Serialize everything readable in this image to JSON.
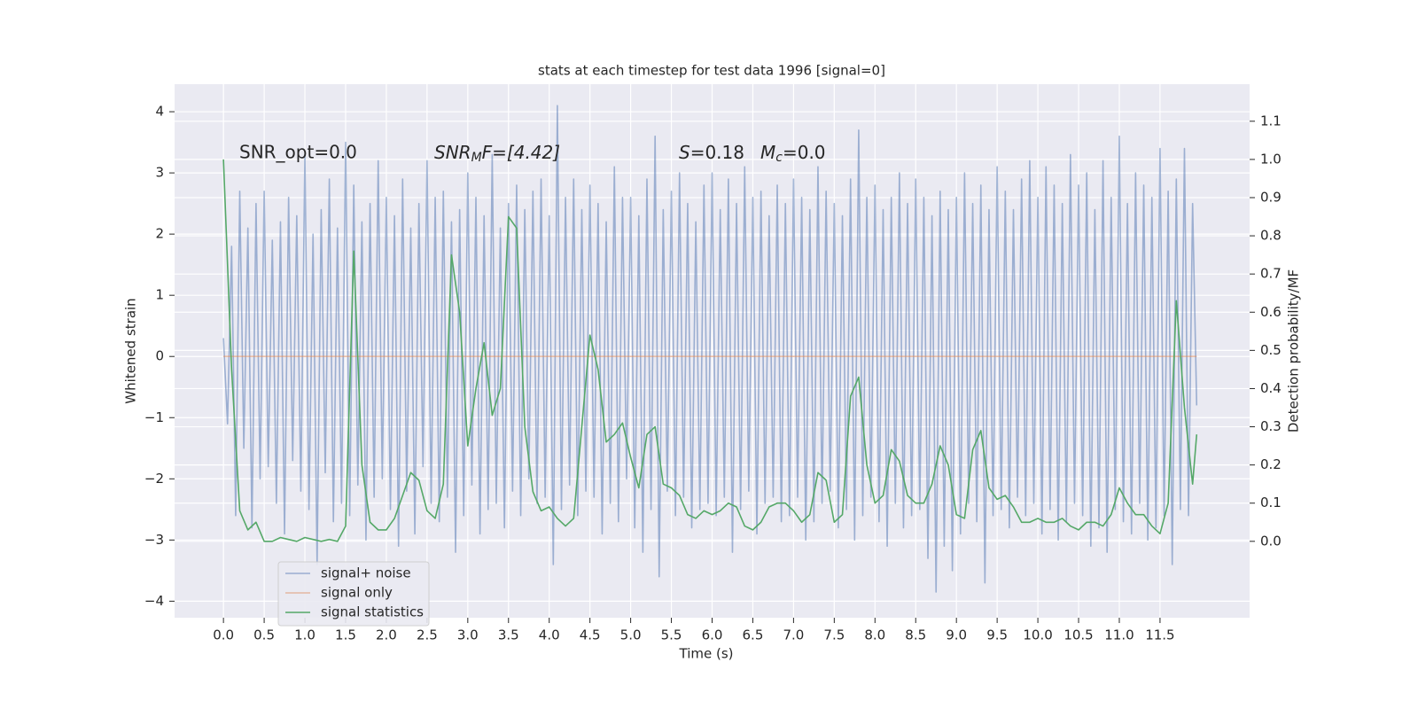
{
  "chart_data": {
    "type": "line",
    "title": "stats at each timestep for test data 1996 [signal=0]",
    "xlabel": "Time (s)",
    "ylabel": "Whitened strain",
    "y2label": "Detection probability/MF",
    "annotations": [
      [
        "SNR_opt=0.0"
      ],
      [
        "SNR",
        "M",
        "F=[4.42]"
      ],
      [
        "S",
        "=0.18",
        "M",
        "c",
        "=0.0"
      ]
    ],
    "grid": true,
    "legend": "lower left",
    "xlim": [
      -0.6,
      12.6
    ],
    "ylim": [
      -4.27,
      4.45
    ],
    "y2lim": [
      -0.2,
      1.197
    ],
    "xticks": [
      {
        "value": 0,
        "label": "0.0"
      },
      {
        "value": 0.5,
        "label": "0.5"
      },
      {
        "value": 1,
        "label": "1.0"
      },
      {
        "value": 1.5,
        "label": "1.5"
      },
      {
        "value": 2,
        "label": "2.0"
      },
      {
        "value": 2.5,
        "label": "2.5"
      },
      {
        "value": 3,
        "label": "3.0"
      },
      {
        "value": 3.5,
        "label": "3.5"
      },
      {
        "value": 4,
        "label": "4.0"
      },
      {
        "value": 4.5,
        "label": "4.5"
      },
      {
        "value": 5,
        "label": "5.0"
      },
      {
        "value": 5.5,
        "label": "5.5"
      },
      {
        "value": 6,
        "label": "6.0"
      },
      {
        "value": 6.5,
        "label": "6.5"
      },
      {
        "value": 7,
        "label": "7.0"
      },
      {
        "value": 7.5,
        "label": "7.5"
      },
      {
        "value": 8,
        "label": "8.0"
      },
      {
        "value": 8.5,
        "label": "8.5"
      },
      {
        "value": 9,
        "label": "9.0"
      },
      {
        "value": 9.5,
        "label": "9.5"
      },
      {
        "value": 10,
        "label": "10.0"
      },
      {
        "value": 10.5,
        "label": "10.5"
      },
      {
        "value": 11,
        "label": "11.0"
      },
      {
        "value": 11.5,
        "label": "11.5"
      }
    ],
    "yticks": [
      {
        "value": -4,
        "label": "−4"
      },
      {
        "value": -3,
        "label": "−3"
      },
      {
        "value": -2,
        "label": "−2"
      },
      {
        "value": -1,
        "label": "−1"
      },
      0,
      1,
      2,
      3,
      4
    ],
    "y2ticks": [
      {
        "value": 0,
        "label": "0.0"
      },
      0.1,
      0.2,
      0.3,
      0.4,
      0.5,
      0.6,
      0.7,
      0.8,
      0.9,
      {
        "value": 1,
        "label": "1.0"
      },
      1.1
    ],
    "series": [
      {
        "name": "signal+ noise",
        "color": "#4c72b0",
        "opacity": 0.5,
        "x": [
          0,
          0.05,
          0.1,
          0.15,
          0.2,
          0.25,
          0.3,
          0.35,
          0.4,
          0.45,
          0.5,
          0.55,
          0.6,
          0.65,
          0.7,
          0.75,
          0.8,
          0.85,
          0.9,
          0.95,
          1,
          1.05,
          1.1,
          1.15,
          1.2,
          1.25,
          1.3,
          1.35,
          1.4,
          1.45,
          1.5,
          1.55,
          1.6,
          1.65,
          1.7,
          1.75,
          1.8,
          1.85,
          1.9,
          1.95,
          2,
          2.05,
          2.1,
          2.15,
          2.2,
          2.25,
          2.3,
          2.35,
          2.4,
          2.45,
          2.5,
          2.55,
          2.6,
          2.65,
          2.7,
          2.75,
          2.8,
          2.85,
          2.9,
          2.95,
          3,
          3.05,
          3.1,
          3.15,
          3.2,
          3.25,
          3.3,
          3.35,
          3.4,
          3.45,
          3.5,
          3.55,
          3.6,
          3.65,
          3.7,
          3.75,
          3.8,
          3.85,
          3.9,
          3.95,
          4,
          4.05,
          4.1,
          4.15,
          4.2,
          4.25,
          4.3,
          4.35,
          4.4,
          4.45,
          4.5,
          4.55,
          4.6,
          4.65,
          4.7,
          4.75,
          4.8,
          4.85,
          4.9,
          4.95,
          5,
          5.05,
          5.1,
          5.15,
          5.2,
          5.25,
          5.3,
          5.35,
          5.4,
          5.45,
          5.5,
          5.55,
          5.6,
          5.65,
          5.7,
          5.75,
          5.8,
          5.85,
          5.9,
          5.95,
          6,
          6.05,
          6.1,
          6.15,
          6.2,
          6.25,
          6.3,
          6.35,
          6.4,
          6.45,
          6.5,
          6.55,
          6.6,
          6.65,
          6.7,
          6.75,
          6.8,
          6.85,
          6.9,
          6.95,
          7,
          7.05,
          7.1,
          7.15,
          7.2,
          7.25,
          7.3,
          7.35,
          7.4,
          7.45,
          7.5,
          7.55,
          7.6,
          7.65,
          7.7,
          7.75,
          7.8,
          7.85,
          7.9,
          7.95,
          8,
          8.05,
          8.1,
          8.15,
          8.2,
          8.25,
          8.3,
          8.35,
          8.4,
          8.45,
          8.5,
          8.55,
          8.6,
          8.65,
          8.7,
          8.75,
          8.8,
          8.85,
          8.9,
          8.95,
          9,
          9.05,
          9.1,
          9.15,
          9.2,
          9.25,
          9.3,
          9.35,
          9.4,
          9.45,
          9.5,
          9.55,
          9.6,
          9.65,
          9.7,
          9.75,
          9.8,
          9.85,
          9.9,
          9.95,
          10,
          10.05,
          10.1,
          10.15,
          10.2,
          10.25,
          10.3,
          10.35,
          10.4,
          10.45,
          10.5,
          10.55,
          10.6,
          10.65,
          10.7,
          10.75,
          10.8,
          10.85,
          10.9,
          10.95,
          11,
          11.05,
          11.1,
          11.15,
          11.2,
          11.25,
          11.3,
          11.35,
          11.4,
          11.45,
          11.5,
          11.55,
          11.6,
          11.65,
          11.7,
          11.75,
          11.8,
          11.85,
          11.9,
          11.95
        ],
        "values": [
          0.3,
          -1.1,
          1.8,
          -2.6,
          2.7,
          -1.5,
          2.1,
          -2.8,
          2.5,
          -2.0,
          2.7,
          -1.8,
          1.9,
          -2.4,
          2.2,
          -2.9,
          2.6,
          -1.7,
          2.3,
          -2.2,
          3.3,
          -2.5,
          2.0,
          -3.4,
          2.4,
          -1.9,
          2.9,
          -2.7,
          2.1,
          -2.4,
          3.5,
          -2.6,
          2.8,
          -2.1,
          2.2,
          -3.0,
          2.5,
          -2.3,
          3.2,
          -2.0,
          2.6,
          -2.5,
          2.3,
          -3.1,
          2.9,
          -2.2,
          2.1,
          -2.9,
          2.5,
          -1.8,
          3.2,
          -2.4,
          2.6,
          -2.7,
          2.7,
          -2.3,
          2.2,
          -3.2,
          2.4,
          -2.6,
          3.0,
          -2.1,
          2.6,
          -2.9,
          2.3,
          -2.5,
          3.3,
          -2.4,
          2.1,
          -2.8,
          2.5,
          -2.2,
          2.8,
          -2.6,
          2.4,
          -2.0,
          2.7,
          -2.4,
          2.9,
          -2.3,
          2.3,
          -3.4,
          4.1,
          -2.5,
          2.6,
          -2.1,
          2.9,
          -2.6,
          2.4,
          -2.2,
          2.8,
          -2.3,
          2.5,
          -2.9,
          2.2,
          -2.4,
          3.1,
          -2.7,
          2.6,
          -2.0,
          2.6,
          -2.8,
          2.3,
          -3.2,
          2.9,
          -2.5,
          3.6,
          -3.6,
          2.4,
          -2.2,
          2.7,
          -2.6,
          3.0,
          -2.3,
          2.5,
          -2.8,
          2.2,
          -2.5,
          2.8,
          -2.4,
          3.0,
          -2.6,
          2.4,
          -2.3,
          2.9,
          -3.2,
          2.5,
          -2.5,
          3.1,
          -2.2,
          2.6,
          -2.9,
          2.7,
          -2.4,
          2.3,
          -2.3,
          2.8,
          -2.7,
          2.5,
          -2.6,
          2.9,
          -2.3,
          2.6,
          -3.0,
          2.4,
          -2.7,
          3.1,
          -2.4,
          2.7,
          -2.2,
          2.5,
          -2.8,
          2.3,
          -2.5,
          2.9,
          -3.0,
          3.7,
          -2.6,
          2.6,
          -2.3,
          2.8,
          -2.7,
          2.4,
          -3.1,
          2.6,
          -2.4,
          3.0,
          -2.8,
          2.5,
          -2.6,
          2.9,
          -2.5,
          2.6,
          -3.3,
          2.3,
          -3.85,
          2.7,
          -3.1,
          2.4,
          -3.5,
          2.6,
          -2.9,
          3.0,
          -2.4,
          2.5,
          -2.7,
          2.8,
          -3.7,
          2.4,
          -2.6,
          3.1,
          -2.5,
          2.7,
          -2.8,
          2.4,
          -2.3,
          2.9,
          -2.6,
          3.2,
          -2.4,
          2.6,
          -2.9,
          3.1,
          -2.5,
          2.8,
          -3.0,
          2.5,
          -2.7,
          3.3,
          -2.4,
          2.8,
          -2.6,
          3.0,
          -3.1,
          2.4,
          -2.8,
          3.2,
          -3.2,
          2.6,
          -2.5,
          3.6,
          -2.7,
          2.5,
          -2.9,
          3.0,
          -2.4,
          2.8,
          -3.0,
          2.6,
          -2.8,
          3.4,
          -2.6,
          2.7,
          -3.4,
          2.9,
          -2.5,
          3.4,
          -2.6,
          2.5,
          -0.8
        ]
      },
      {
        "name": "signal only",
        "color": "#dd8452",
        "opacity": 0.5,
        "x": [
          0,
          11.95
        ],
        "values": [
          0,
          0
        ]
      },
      {
        "name": "signal statistics",
        "color": "#55a868",
        "opacity": 1,
        "axis": "y2",
        "x": [
          0,
          0.1,
          0.2,
          0.3,
          0.4,
          0.5,
          0.6,
          0.7,
          0.8,
          0.9,
          1,
          1.1,
          1.2,
          1.3,
          1.4,
          1.5,
          1.6,
          1.7,
          1.8,
          1.9,
          2,
          2.1,
          2.2,
          2.3,
          2.4,
          2.5,
          2.6,
          2.7,
          2.8,
          2.9,
          3,
          3.1,
          3.2,
          3.3,
          3.4,
          3.5,
          3.6,
          3.7,
          3.8,
          3.9,
          4,
          4.1,
          4.2,
          4.3,
          4.4,
          4.5,
          4.6,
          4.7,
          4.8,
          4.9,
          5,
          5.1,
          5.2,
          5.3,
          5.4,
          5.5,
          5.6,
          5.7,
          5.8,
          5.9,
          6,
          6.1,
          6.2,
          6.3,
          6.4,
          6.5,
          6.6,
          6.7,
          6.8,
          6.9,
          7,
          7.1,
          7.2,
          7.3,
          7.4,
          7.5,
          7.6,
          7.7,
          7.8,
          7.9,
          8,
          8.1,
          8.2,
          8.3,
          8.4,
          8.5,
          8.6,
          8.7,
          8.8,
          8.9,
          9,
          9.1,
          9.2,
          9.3,
          9.4,
          9.5,
          9.6,
          9.7,
          9.8,
          9.9,
          10,
          10.1,
          10.2,
          10.3,
          10.4,
          10.5,
          10.6,
          10.7,
          10.8,
          10.9,
          11,
          11.1,
          11.2,
          11.3,
          11.4,
          11.5,
          11.6,
          11.7,
          11.8,
          11.9,
          11.95
        ],
        "values": [
          1.0,
          0.45,
          0.08,
          0.03,
          0.05,
          0.0,
          0.0,
          0.01,
          0.005,
          0.0,
          0.01,
          0.005,
          0.0,
          0.005,
          0.0,
          0.04,
          0.76,
          0.2,
          0.05,
          0.03,
          0.03,
          0.06,
          0.12,
          0.18,
          0.16,
          0.08,
          0.06,
          0.15,
          0.75,
          0.6,
          0.25,
          0.4,
          0.52,
          0.33,
          0.4,
          0.85,
          0.82,
          0.3,
          0.13,
          0.08,
          0.09,
          0.06,
          0.04,
          0.06,
          0.3,
          0.54,
          0.45,
          0.26,
          0.28,
          0.31,
          0.22,
          0.14,
          0.28,
          0.3,
          0.15,
          0.14,
          0.12,
          0.07,
          0.06,
          0.08,
          0.07,
          0.08,
          0.1,
          0.09,
          0.04,
          0.03,
          0.05,
          0.09,
          0.1,
          0.1,
          0.08,
          0.05,
          0.07,
          0.18,
          0.16,
          0.05,
          0.07,
          0.38,
          0.43,
          0.2,
          0.1,
          0.12,
          0.24,
          0.21,
          0.12,
          0.1,
          0.1,
          0.15,
          0.25,
          0.2,
          0.07,
          0.06,
          0.24,
          0.29,
          0.14,
          0.11,
          0.12,
          0.09,
          0.05,
          0.05,
          0.06,
          0.05,
          0.05,
          0.06,
          0.04,
          0.03,
          0.05,
          0.05,
          0.04,
          0.07,
          0.14,
          0.1,
          0.07,
          0.07,
          0.04,
          0.02,
          0.1,
          0.63,
          0.35,
          0.15,
          0.28
        ]
      }
    ]
  }
}
